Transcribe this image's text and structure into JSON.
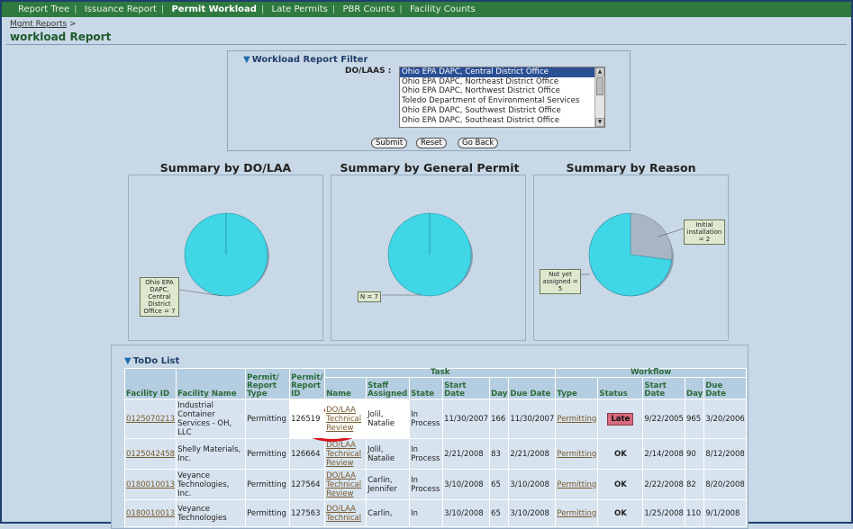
{
  "nav": {
    "items": [
      "Report Tree",
      "Issuance Report",
      "Permit Workload",
      "Late Permits",
      "PBR Counts",
      "Facility Counts"
    ],
    "active": "Permit Workload"
  },
  "breadcrumb": {
    "root": "Mgmt Reports",
    "sep": ">"
  },
  "page_title": "workload Report",
  "filter": {
    "title": "Workload Report Filter",
    "dolaa_label": "DO/LAAS :",
    "options": [
      "Ohio EPA DAPC, Central District Office",
      "Ohio EPA DAPC, Northeast District Office",
      "Ohio EPA DAPC, Northwest District Office",
      "Toledo Department of Environmental Services",
      "Ohio EPA DAPC, Southwest District Office",
      "Ohio EPA DAPC, Southeast District Office"
    ],
    "selected": "Ohio EPA DAPC, Central District Office",
    "submit_label": "Submit",
    "reset_label": "Reset",
    "goback_label": "Go Back"
  },
  "summaries": {
    "dolaa_title": "Summary by DO/LAA",
    "general_title": "Summary by General Permit",
    "reason_title": "Summary by Reason",
    "dolaa_label": "Ohio EPA DAPC, Central District Office = 7",
    "general_label": "N = 7",
    "reason_label_1": "Initial installation = 2",
    "reason_label_2": "Not yet assigned = 5"
  },
  "chart_data": [
    {
      "type": "pie",
      "title": "Summary by DO/LAA",
      "categories": [
        "Ohio EPA DAPC, Central District Office"
      ],
      "values": [
        7
      ]
    },
    {
      "type": "pie",
      "title": "Summary by General Permit",
      "categories": [
        "N"
      ],
      "values": [
        7
      ]
    },
    {
      "type": "pie",
      "title": "Summary by Reason",
      "categories": [
        "Not yet assigned",
        "Initial installation"
      ],
      "values": [
        5,
        2
      ]
    }
  ],
  "colors": {
    "pie_main": "#3fd6e6",
    "pie_alt": "#a8b6c4",
    "nav_green": "#2f7a3f",
    "late": "#d96a7d"
  },
  "todo": {
    "title": "ToDo List",
    "group_task": "Task",
    "group_workflow": "Workflow",
    "headers": {
      "facility_id": "Facility ID",
      "facility_name": "Facility Name",
      "permit_type": "Permit/ Report Type",
      "permit_id": "Permit/ Report ID",
      "task_name": "Name",
      "staff": "Staff Assigned",
      "state": "State",
      "start_date": "Start Date",
      "day": "Day",
      "due_date": "Due Date",
      "wf_type": "Type",
      "wf_status": "Status",
      "wf_start": "Start Date",
      "wf_day": "Day",
      "wf_due": "Due Date"
    },
    "rows": [
      {
        "facility_id": "0125070213",
        "facility_name": "Industrial Container Services - OH, LLC",
        "permit_type": "Permitting",
        "permit_id": "126519",
        "task_name": "DO/LAA Technical Review",
        "staff": "Jolil, Natalie",
        "state": "In Process",
        "start_date": "11/30/2007",
        "day": "166",
        "due_date": "11/30/2007",
        "wf_type": "Permitting",
        "wf_status": "Late",
        "wf_start": "9/22/2005",
        "wf_day": "965",
        "wf_due": "3/20/2006"
      },
      {
        "facility_id": "0125042458",
        "facility_name": "Shelly Materials, Inc.",
        "permit_type": "Permitting",
        "permit_id": "126664",
        "task_name": "DO/LAA Technical Review",
        "staff": "Jolil, Natalie",
        "state": "In Process",
        "start_date": "2/21/2008",
        "day": "83",
        "due_date": "2/21/2008",
        "wf_type": "Permitting",
        "wf_status": "OK",
        "wf_start": "2/14/2008",
        "wf_day": "90",
        "wf_due": "8/12/2008"
      },
      {
        "facility_id": "0180010013",
        "facility_name": "Veyance Technologies, Inc.",
        "permit_type": "Permitting",
        "permit_id": "127564",
        "task_name": "DO/LAA Technical Review",
        "staff": "Carlin, Jennifer",
        "state": "In Process",
        "start_date": "3/10/2008",
        "day": "65",
        "due_date": "3/10/2008",
        "wf_type": "Permitting",
        "wf_status": "OK",
        "wf_start": "2/22/2008",
        "wf_day": "82",
        "wf_due": "8/20/2008"
      },
      {
        "facility_id": "0180010013",
        "facility_name": "Veyance Technologies",
        "permit_type": "Permitting",
        "permit_id": "127563",
        "task_name": "DO/LAA Technical",
        "staff": "Carlin,",
        "state": "In",
        "start_date": "3/10/2008",
        "day": "65",
        "due_date": "3/10/2008",
        "wf_type": "Permitting",
        "wf_status": "OK",
        "wf_start": "1/25/2008",
        "wf_day": "110",
        "wf_due": "9/1/2008"
      }
    ]
  }
}
